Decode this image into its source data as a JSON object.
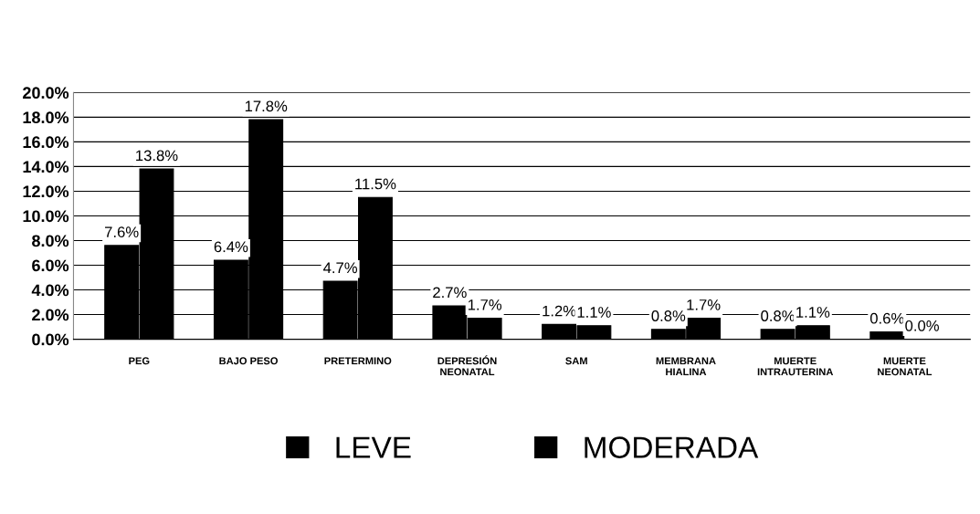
{
  "chart_data": {
    "type": "bar",
    "categories": [
      "PEG",
      "BAJO PESO",
      "PRETERMINO",
      "DEPRESIÓN\nNEONATAL",
      "SAM",
      "MEMBRANA\nHIALINA",
      "MUERTE\nINTRAUTERINA",
      "MUERTE\nNEONATAL"
    ],
    "series": [
      {
        "name": "LEVE",
        "color": "#000000",
        "values": [
          7.6,
          6.4,
          4.7,
          2.7,
          1.2,
          0.8,
          0.8,
          0.6
        ],
        "value_labels": [
          "7.6%",
          "6.4%",
          "4.7%",
          "2.7%",
          "1.2%",
          "0.8%",
          "0.8%",
          "0.6%"
        ]
      },
      {
        "name": "MODERADA",
        "color": "#000000",
        "values": [
          13.8,
          17.8,
          11.5,
          1.7,
          1.1,
          1.7,
          1.1,
          0.0
        ],
        "value_labels": [
          "13.8%",
          "17.8%",
          "11.5%",
          "1.7%",
          "1.1%",
          "1.7%",
          "1.1%",
          "0.0%"
        ]
      }
    ],
    "ylim": [
      0,
      20
    ],
    "yticks": [
      {
        "value": 0,
        "label": "0.0%"
      },
      {
        "value": 2,
        "label": "2.0%"
      },
      {
        "value": 4,
        "label": "4.0%"
      },
      {
        "value": 6,
        "label": "6.0%"
      },
      {
        "value": 8,
        "label": "8.0%"
      },
      {
        "value": 10,
        "label": "10.0%"
      },
      {
        "value": 12,
        "label": "12.0%"
      },
      {
        "value": 14,
        "label": "14.0%"
      },
      {
        "value": 16,
        "label": "16.0%"
      },
      {
        "value": 18,
        "label": "18.0%"
      },
      {
        "value": 20,
        "label": "20.0%"
      }
    ],
    "grid": "y",
    "legend": "bottom"
  }
}
